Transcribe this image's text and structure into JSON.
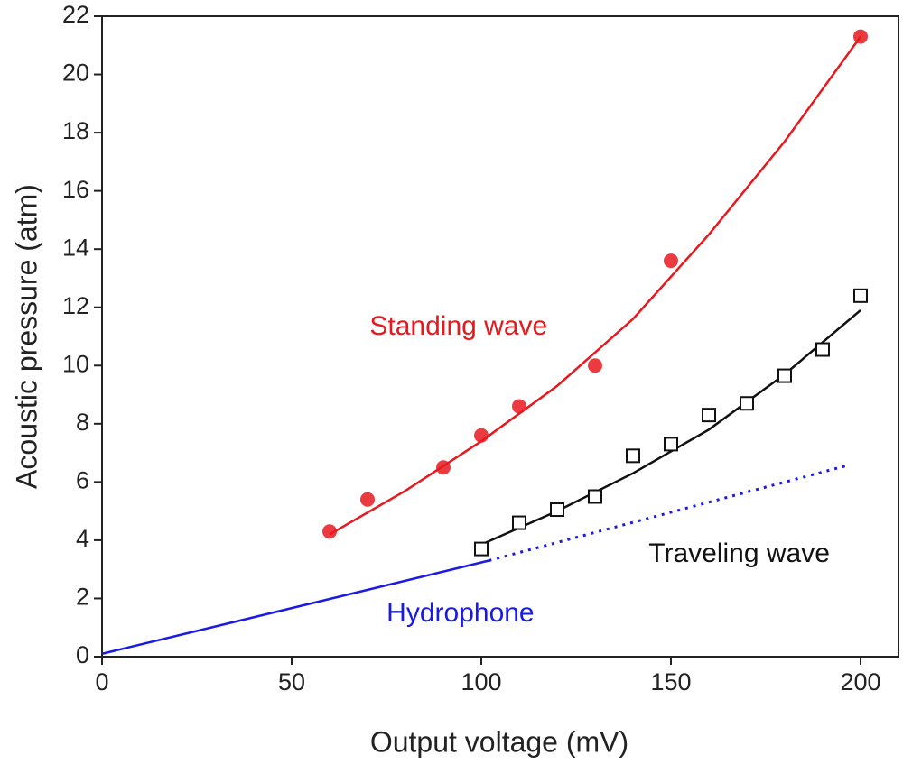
{
  "chart_data": {
    "type": "scatter",
    "xlabel": "Output voltage (mV)",
    "ylabel": "Acoustic pressure (atm)",
    "xlim": [
      0,
      210
    ],
    "ylim": [
      0,
      22
    ],
    "xticks": [
      0,
      50,
      100,
      150,
      200
    ],
    "yticks": [
      0,
      2,
      4,
      6,
      8,
      10,
      12,
      14,
      16,
      18,
      20,
      22
    ],
    "series": [
      {
        "name": "Standing wave",
        "color": "#e8191e",
        "marker": "filled-circle",
        "x": [
          60,
          70,
          90,
          100,
          110,
          130,
          150,
          200
        ],
        "values": [
          4.3,
          5.4,
          6.5,
          7.6,
          8.6,
          10.0,
          13.6,
          21.3
        ],
        "fit": {
          "x": [
            60,
            80,
            100,
            120,
            140,
            160,
            180,
            200
          ],
          "values": [
            4.2,
            5.7,
            7.4,
            9.3,
            11.6,
            14.5,
            17.7,
            21.3
          ]
        }
      },
      {
        "name": "Traveling wave",
        "color": "#111111",
        "marker": "open-square",
        "x": [
          100,
          110,
          120,
          130,
          140,
          150,
          160,
          170,
          180,
          190,
          200
        ],
        "values": [
          3.7,
          4.6,
          5.05,
          5.5,
          6.9,
          7.3,
          8.3,
          8.7,
          9.65,
          10.55,
          12.4
        ],
        "fit": {
          "x": [
            100,
            120,
            140,
            160,
            180,
            200
          ],
          "values": [
            3.85,
            5.0,
            6.3,
            7.8,
            9.7,
            11.9
          ]
        }
      },
      {
        "name": "Hydrophone",
        "color": "#1a1ae6",
        "fit": {
          "x": [
            0,
            102
          ],
          "values": [
            0.1,
            3.3
          ]
        },
        "extrapolation": {
          "x": [
            102,
            196
          ],
          "values": [
            3.3,
            6.55
          ]
        }
      }
    ]
  }
}
